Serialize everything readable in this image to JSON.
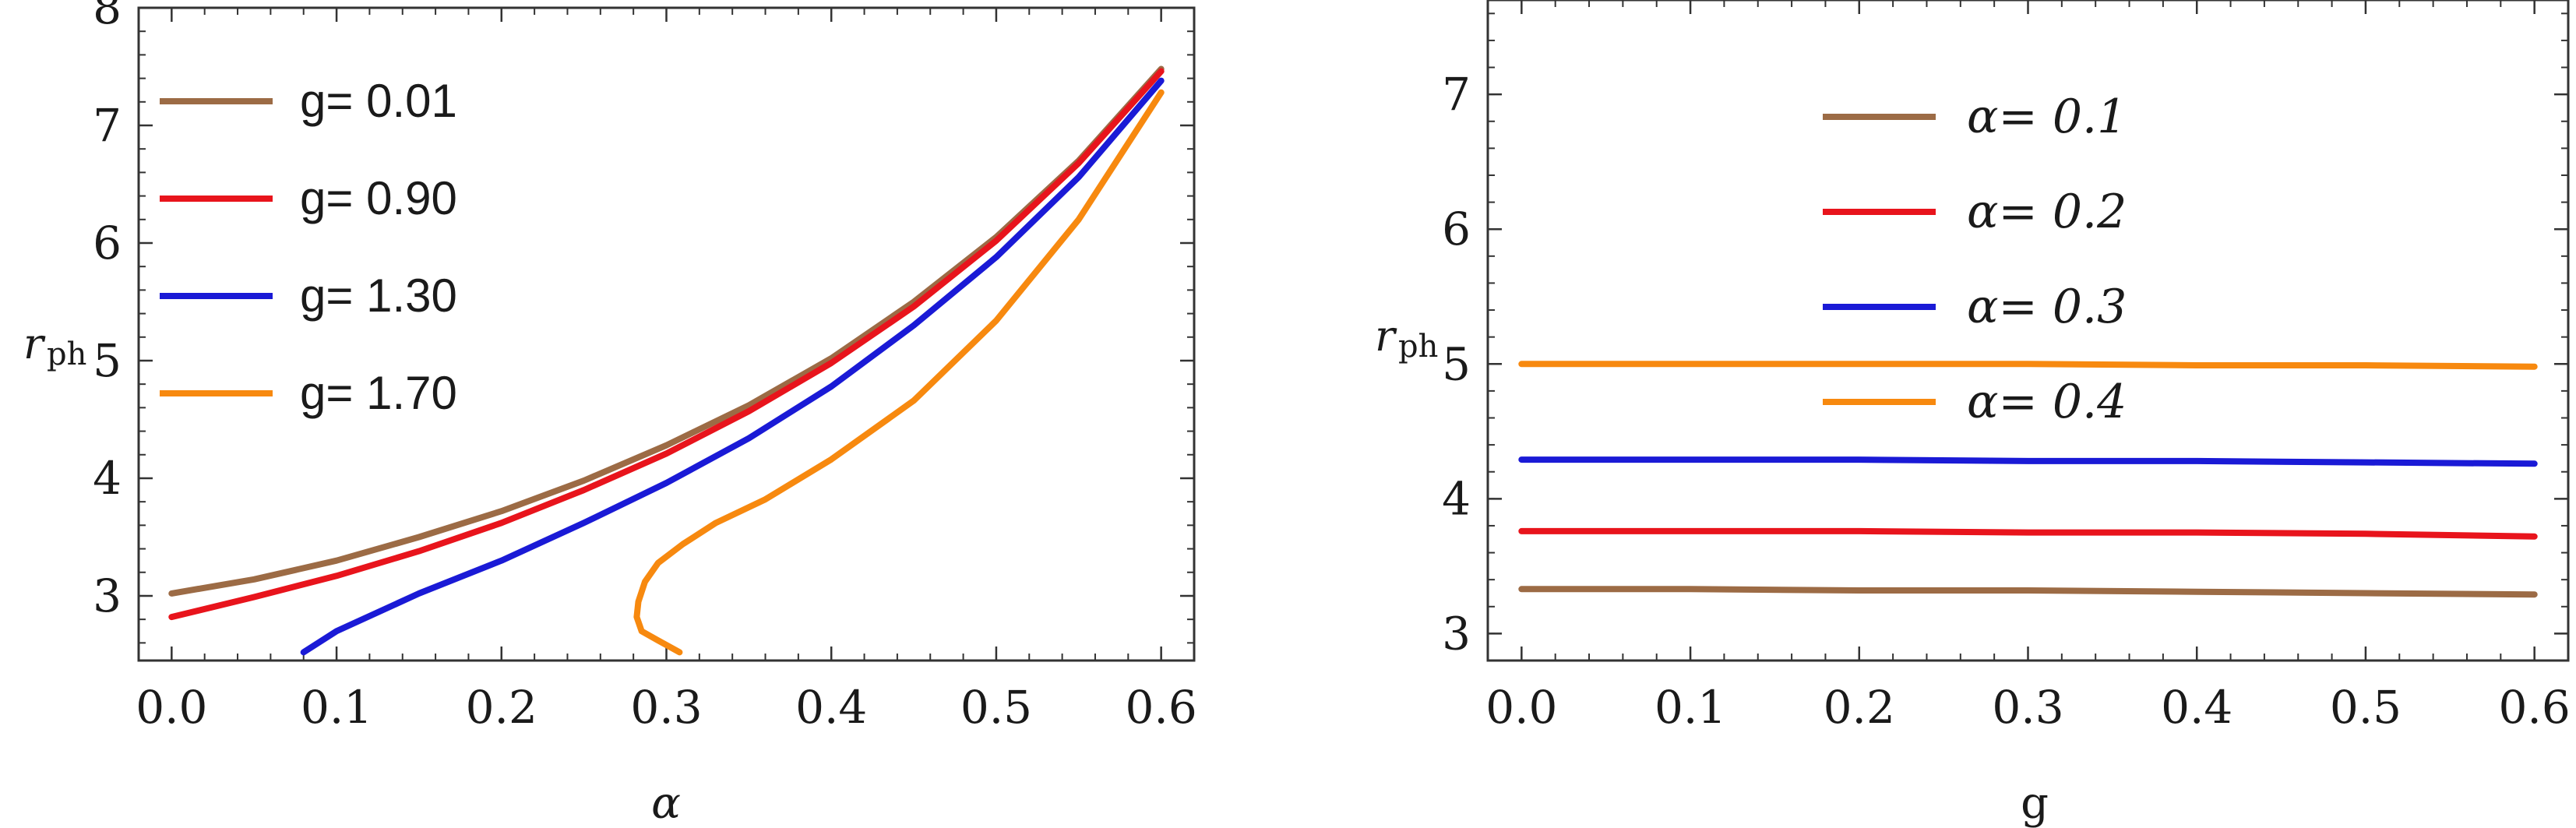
{
  "chart_data": [
    {
      "type": "line",
      "xlabel": "α",
      "ylabel_main": "r",
      "ylabel_sub": "ph",
      "xlim": [
        -0.02,
        0.62
      ],
      "ylim": [
        2.45,
        8.0
      ],
      "xticks": [
        0.0,
        0.1,
        0.2,
        0.3,
        0.4,
        0.5,
        0.6
      ],
      "xtick_labels": [
        "0.0",
        "0.1",
        "0.2",
        "0.3",
        "0.4",
        "0.5",
        "0.6"
      ],
      "yticks": [
        3,
        4,
        5,
        6,
        7,
        8
      ],
      "ytick_labels": [
        "3",
        "4",
        "5",
        "6",
        "7",
        "8"
      ],
      "legend_position": "top-left",
      "series": [
        {
          "name": "g= 0.01",
          "color": "#9c6b45",
          "x": [
            0.0,
            0.05,
            0.1,
            0.15,
            0.2,
            0.25,
            0.3,
            0.35,
            0.4,
            0.45,
            0.5,
            0.55,
            0.6
          ],
          "y": [
            3.02,
            3.14,
            3.3,
            3.5,
            3.72,
            3.98,
            4.28,
            4.62,
            5.02,
            5.5,
            6.05,
            6.7,
            7.48
          ]
        },
        {
          "name": "g= 0.90",
          "color": "#e8141c",
          "x": [
            0.0,
            0.05,
            0.1,
            0.15,
            0.2,
            0.25,
            0.3,
            0.35,
            0.4,
            0.45,
            0.5,
            0.55,
            0.6
          ],
          "y": [
            2.82,
            2.99,
            3.17,
            3.38,
            3.62,
            3.9,
            4.21,
            4.57,
            4.98,
            5.46,
            6.02,
            6.68,
            7.46
          ]
        },
        {
          "name": "g= 1.30",
          "color": "#1a1ad6",
          "x": [
            0.08,
            0.1,
            0.15,
            0.2,
            0.25,
            0.3,
            0.35,
            0.4,
            0.45,
            0.5,
            0.55,
            0.6
          ],
          "y": [
            2.52,
            2.7,
            3.02,
            3.3,
            3.62,
            3.96,
            4.34,
            4.78,
            5.3,
            5.88,
            6.56,
            7.38
          ]
        },
        {
          "name": "g= 1.70",
          "color": "#f7890f",
          "x": [
            0.308,
            0.295,
            0.285,
            0.282,
            0.283,
            0.287,
            0.295,
            0.31,
            0.33,
            0.36,
            0.4,
            0.45,
            0.5,
            0.55,
            0.6
          ],
          "y": [
            2.52,
            2.62,
            2.7,
            2.82,
            2.95,
            3.12,
            3.28,
            3.44,
            3.62,
            3.82,
            4.16,
            4.66,
            5.34,
            6.2,
            7.28
          ]
        }
      ]
    },
    {
      "type": "line",
      "xlabel": "g",
      "ylabel_main": "r",
      "ylabel_sub": "ph",
      "xlim": [
        -0.02,
        0.62
      ],
      "ylim": [
        2.8,
        7.7
      ],
      "xticks": [
        0.0,
        0.1,
        0.2,
        0.3,
        0.4,
        0.5,
        0.6
      ],
      "xtick_labels": [
        "0.0",
        "0.1",
        "0.2",
        "0.3",
        "0.4",
        "0.5",
        "0.6"
      ],
      "yticks": [
        3,
        4,
        5,
        6,
        7
      ],
      "ytick_labels": [
        "3",
        "4",
        "5",
        "6",
        "7"
      ],
      "legend_position": "top-center",
      "series": [
        {
          "name": "α= 0.1",
          "color": "#9c6b45",
          "x": [
            0.0,
            0.1,
            0.2,
            0.3,
            0.4,
            0.5,
            0.6
          ],
          "y": [
            3.33,
            3.33,
            3.32,
            3.32,
            3.31,
            3.3,
            3.29
          ]
        },
        {
          "name": "α= 0.2",
          "color": "#e8141c",
          "x": [
            0.0,
            0.1,
            0.2,
            0.3,
            0.4,
            0.5,
            0.6
          ],
          "y": [
            3.76,
            3.76,
            3.76,
            3.75,
            3.75,
            3.74,
            3.72
          ]
        },
        {
          "name": "α= 0.3",
          "color": "#1a1ad6",
          "x": [
            0.0,
            0.1,
            0.2,
            0.3,
            0.4,
            0.5,
            0.6
          ],
          "y": [
            4.29,
            4.29,
            4.29,
            4.28,
            4.28,
            4.27,
            4.26
          ]
        },
        {
          "name": "α= 0.4",
          "color": "#f7890f",
          "x": [
            0.0,
            0.1,
            0.2,
            0.3,
            0.4,
            0.5,
            0.6
          ],
          "y": [
            5.0,
            5.0,
            5.0,
            5.0,
            4.99,
            4.99,
            4.98
          ]
        }
      ]
    }
  ]
}
